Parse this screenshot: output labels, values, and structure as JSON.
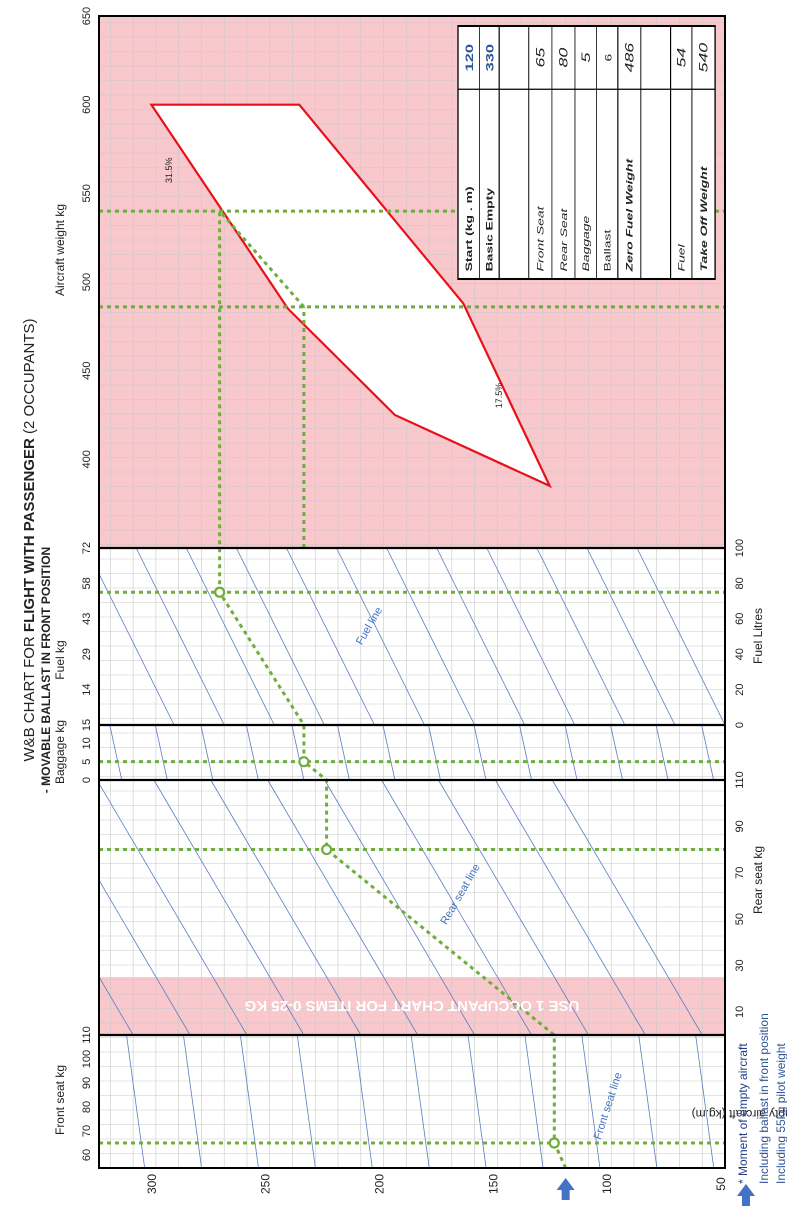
{
  "chart_data": {
    "type": "line",
    "title": {
      "prefix": "W&B CHART FOR ",
      "bold": "FLIGHT WITH PASSENGER",
      "suffix": " (2 OCCUPANTS)",
      "subtitle": "- MOVABLE BALLAST IN FRONT POSITION"
    },
    "y_axis": {
      "label": "Moment empty aircraft (kg.m)",
      "range": [
        50,
        325
      ],
      "ticks": [
        "50",
        "100",
        "150",
        "200",
        "250",
        "300"
      ],
      "grid": true
    },
    "panels": {
      "front_seat": {
        "label": "Front seat kg",
        "range": [
          55,
          110
        ],
        "ticks": [
          "60",
          "70",
          "80",
          "90",
          "100",
          "110"
        ],
        "line_label": "Front seat line"
      },
      "rear_seat": {
        "label": "Rear seat kg",
        "range": [
          0,
          110
        ],
        "ticks": [
          "10",
          "30",
          "50",
          "70",
          "90",
          "110"
        ],
        "line_label": "Rear seat line",
        "warning": "USE 1 OCCUPANT CHART FOR ITEMS 0-25 KG",
        "warning_range": [
          0,
          25
        ]
      },
      "baggage": {
        "label": "Baggage kg",
        "range": [
          0,
          15
        ],
        "ticks": [
          "0",
          "5",
          "10",
          "15"
        ]
      },
      "fuel": {
        "label_kg": "Fuel kg",
        "label_litres": "Fuel Litres",
        "range_litres": [
          0,
          100
        ],
        "ticks_kg": [
          "14",
          "29",
          "43",
          "58",
          "72"
        ],
        "ticks_litres": [
          "0",
          "20",
          "40",
          "60",
          "80",
          "100"
        ],
        "line_label": "Fuel line"
      },
      "weight": {
        "label": "Aircraft weight kg",
        "range": [
          350,
          650
        ],
        "ticks": [
          "400",
          "450",
          "500",
          "550",
          "600",
          "650"
        ],
        "envelope": [
          [
            385,
            127
          ],
          [
            425,
            195
          ],
          [
            485,
            242
          ],
          [
            600,
            302
          ],
          [
            600,
            237
          ],
          [
            488,
            165
          ],
          [
            385,
            127
          ]
        ],
        "envelope_labels": [
          "31.5%",
          "17.5%"
        ]
      }
    },
    "example_path": {
      "start_moment": 120,
      "points": [
        {
          "panel": "front_seat",
          "x": 65,
          "y": 125
        },
        {
          "panel": "rear_seat",
          "x": 80,
          "y": 225
        },
        {
          "panel": "baggage",
          "x": 5,
          "y": 235
        },
        {
          "panel": "fuel",
          "x": 75,
          "y": 272
        }
      ],
      "zero_fuel_weight": 486,
      "take_off_weight": 540
    },
    "table": {
      "rows": [
        {
          "label": "Start (kg . m)",
          "value": "120",
          "style": "bold-blue"
        },
        {
          "label": "Basic Empty",
          "value": "330",
          "style": "bold-blue"
        },
        {
          "label": "",
          "value": "",
          "style": "blank"
        },
        {
          "label": "Front Seat",
          "value": "65",
          "style": "italic"
        },
        {
          "label": "Rear Seat",
          "value": "80",
          "style": "italic"
        },
        {
          "label": "Baggage",
          "value": "5",
          "style": "italic"
        },
        {
          "label": "Ballast",
          "value": "6",
          "style": "plain"
        },
        {
          "label": "Zero Fuel Weight",
          "value": "486",
          "style": "bold-italic"
        },
        {
          "label": "",
          "value": "",
          "style": "blank"
        },
        {
          "label": "Fuel",
          "value": "54",
          "style": "italic"
        },
        {
          "label": "Take Off Weight",
          "value": "540",
          "style": "bold-italic"
        }
      ]
    },
    "footnote": [
      "* Moment of empty aircraft",
      "Including ballast in front position",
      "Including 55kg pilot weight"
    ],
    "colors": {
      "envelope_background": "#f8c8cc",
      "envelope_line": "#e8111a",
      "guide": "#6fad3c",
      "diagonal": "#5a7dc2",
      "label_blue": "#4472c4",
      "grid": "#c9c9c9"
    }
  }
}
